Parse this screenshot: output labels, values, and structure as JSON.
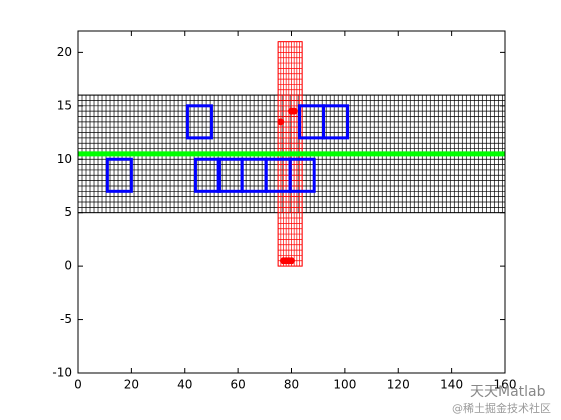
{
  "chart_data": {
    "type": "plot",
    "xlim": [
      0,
      160
    ],
    "ylim": [
      -10,
      22
    ],
    "xticks": [
      0,
      20,
      40,
      60,
      80,
      100,
      120,
      140,
      160
    ],
    "yticks": [
      -10,
      -5,
      0,
      5,
      10,
      15,
      20
    ],
    "meshes": [
      {
        "x": [
          0,
          160
        ],
        "y": [
          5,
          16
        ],
        "step": [
          1.5,
          0.5
        ],
        "color": "#000000"
      },
      {
        "x": [
          75,
          84
        ],
        "y": [
          0,
          21
        ],
        "step": [
          1,
          0.5
        ],
        "color": "#ff0000"
      }
    ],
    "line": {
      "x": [
        0,
        160
      ],
      "y": [
        10.5,
        10.5
      ],
      "color": "#00ff00"
    },
    "rectangles": {
      "x": [
        11,
        44,
        52.5,
        61.5,
        70.5,
        79.5,
        41,
        83,
        92
      ],
      "y": [
        7,
        7,
        7,
        7,
        7,
        7,
        12,
        12,
        12
      ],
      "width": 9,
      "height": 3,
      "color": "#0000ff"
    },
    "points": {
      "x": [
        76,
        80,
        81,
        77,
        78,
        79,
        80
      ],
      "y": [
        13.5,
        14.5,
        14.5,
        0.5,
        0.5,
        0.5,
        0.5
      ],
      "color": "#ff0000"
    }
  },
  "watermark": {
    "title": "天天Matlab",
    "source": "@稀土掘金技术社区"
  }
}
